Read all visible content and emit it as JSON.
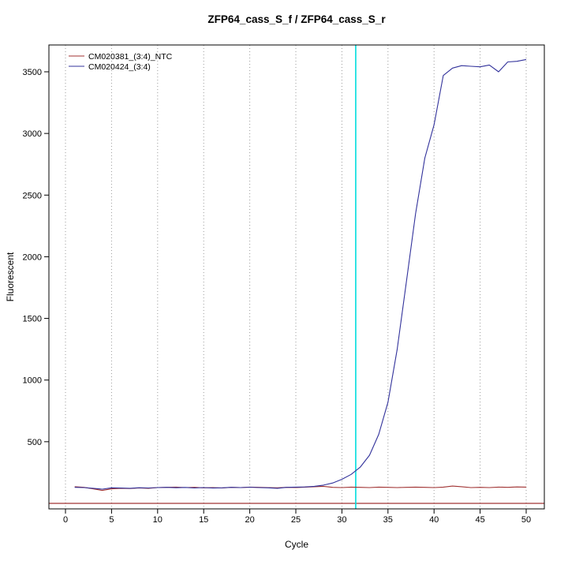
{
  "page": {
    "background": "#ffffff"
  },
  "chart_data": {
    "type": "line",
    "title": "ZFP64_cass_S_f / ZFP64_cass_S_r",
    "xlabel": "Cycle",
    "ylabel": "Fluorescent",
    "xlim": [
      0,
      50
    ],
    "ylim": [
      0,
      3500
    ],
    "x_ticks": [
      0,
      5,
      10,
      15,
      20,
      25,
      30,
      35,
      40,
      45,
      50
    ],
    "y_ticks": [
      500,
      1000,
      1500,
      2000,
      2500,
      3000,
      3500
    ],
    "grid": {
      "vertical_dotted": true,
      "color": "#9a9a9a"
    },
    "legend_position": "top-left",
    "threshold_line": {
      "x": 31.5,
      "color": "#00DDDD"
    },
    "baseline": {
      "y": 0,
      "color": "#8B0000"
    },
    "x": [
      1,
      2,
      3,
      4,
      5,
      6,
      7,
      8,
      9,
      10,
      11,
      12,
      13,
      14,
      15,
      16,
      17,
      18,
      19,
      20,
      21,
      22,
      23,
      24,
      25,
      26,
      27,
      28,
      29,
      30,
      31,
      32,
      33,
      34,
      35,
      36,
      37,
      38,
      39,
      40,
      41,
      42,
      43,
      44,
      45,
      46,
      47,
      48,
      49,
      50
    ],
    "series": [
      {
        "name": "CM020381_(3:4)_NTC",
        "color": "#A03232",
        "values": [
          135,
          130,
          118,
          105,
          118,
          122,
          120,
          125,
          122,
          128,
          130,
          132,
          128,
          130,
          126,
          128,
          125,
          130,
          128,
          132,
          130,
          128,
          126,
          130,
          128,
          132,
          135,
          138,
          130,
          128,
          132,
          130,
          128,
          132,
          130,
          128,
          130,
          132,
          130,
          128,
          132,
          140,
          135,
          128,
          130,
          128,
          132,
          130,
          133,
          132
        ]
      },
      {
        "name": "CM020424_(3:4)",
        "color": "#32329B",
        "values": [
          130,
          128,
          122,
          115,
          126,
          124,
          122,
          127,
          125,
          128,
          130,
          127,
          129,
          125,
          128,
          124,
          126,
          130,
          128,
          131,
          128,
          126,
          122,
          130,
          132,
          133,
          138,
          148,
          165,
          195,
          235,
          295,
          390,
          560,
          820,
          1250,
          1800,
          2350,
          2800,
          3070,
          3470,
          3530,
          3550,
          3545,
          3540,
          3555,
          3500,
          3580,
          3585,
          3600
        ]
      }
    ]
  }
}
